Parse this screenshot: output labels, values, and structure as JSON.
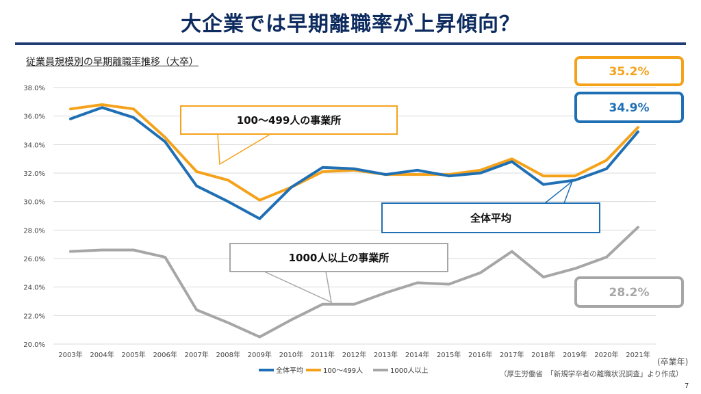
{
  "header": {
    "title": "大企業では早期離職率が上昇傾向？",
    "subtitle": "従業員規模別の早期離職率推移（大卒）",
    "unit_label": "(卒業年)",
    "source": "（厚生労働省　「新規学卒者の離職状況調査」より作成）",
    "page_number": "7"
  },
  "callouts": {
    "mid_size_label": "100～499人の事業所",
    "overall_label": "全体平均",
    "large_label": "1000人以上の事業所",
    "value_mid": "35.2%",
    "value_overall": "34.9%",
    "value_large": "28.2%"
  },
  "colors": {
    "overall": "#1f6fb4",
    "mid": "#f5a21b",
    "large": "#a6a6a6",
    "overall_box": "#1f6fb4",
    "mid_box": "#f5a21b",
    "large_box": "#a6a6a6"
  },
  "chart_data": {
    "type": "line",
    "x": [
      "2003年",
      "2004年",
      "2005年",
      "2006年",
      "2007年",
      "2008年",
      "2009年",
      "2010年",
      "2011年",
      "2012年",
      "2013年",
      "2014年",
      "2015年",
      "2016年",
      "2017年",
      "2018年",
      "2019年",
      "2020年",
      "2021年"
    ],
    "y_ticks": [
      "20.0%",
      "22.0%",
      "24.0%",
      "26.0%",
      "28.0%",
      "30.0%",
      "32.0%",
      "34.0%",
      "36.0%",
      "38.0%"
    ],
    "ylim": [
      20,
      38
    ],
    "grid": true,
    "legend_position": "bottom",
    "series": [
      {
        "name": "全体平均",
        "color": "#1f6fb4",
        "values": [
          35.8,
          36.6,
          35.9,
          34.2,
          31.1,
          30.0,
          28.8,
          31.0,
          32.4,
          32.3,
          31.9,
          32.2,
          31.8,
          32.0,
          32.8,
          31.2,
          31.5,
          32.3,
          34.9
        ]
      },
      {
        "name": "100～499人",
        "color": "#f5a21b",
        "values": [
          36.5,
          36.8,
          36.5,
          34.5,
          32.1,
          31.5,
          30.1,
          31.0,
          32.1,
          32.2,
          31.9,
          31.9,
          31.9,
          32.2,
          33.0,
          31.8,
          31.8,
          32.9,
          35.2
        ]
      },
      {
        "name": "1000人以上",
        "color": "#a6a6a6",
        "values": [
          26.5,
          26.6,
          26.6,
          26.1,
          22.4,
          21.5,
          20.5,
          21.7,
          22.8,
          22.8,
          23.6,
          24.3,
          24.2,
          25.0,
          26.5,
          24.7,
          25.3,
          26.1,
          28.2
        ]
      }
    ]
  }
}
